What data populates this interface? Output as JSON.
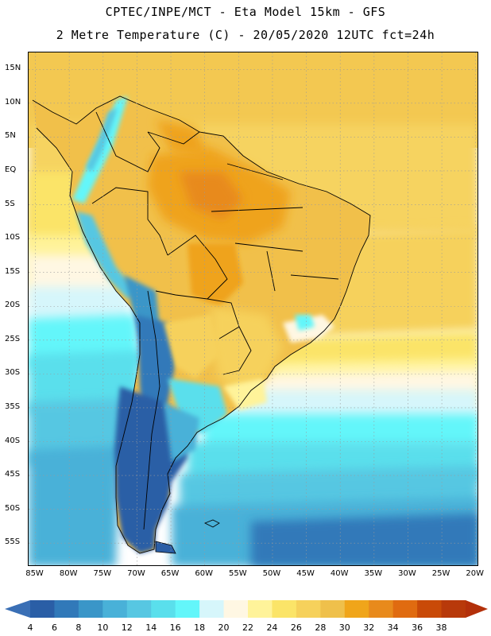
{
  "header": {
    "line1": "CPTEC/INPE/MCT -  Eta Model 15km - GFS",
    "line2": "2 Metre Temperature (C) - 20/05/2020 12UTC fct=24h"
  },
  "map": {
    "lat_labels": [
      "15N",
      "10N",
      "5N",
      "EQ",
      "5S",
      "10S",
      "15S",
      "20S",
      "25S",
      "30S",
      "35S",
      "40S",
      "45S",
      "50S",
      "55S"
    ],
    "lat_values": [
      15,
      10,
      5,
      0,
      -5,
      -10,
      -15,
      -20,
      -25,
      -30,
      -35,
      -40,
      -45,
      -50,
      -55
    ],
    "lon_labels": [
      "85W",
      "80W",
      "75W",
      "70W",
      "65W",
      "60W",
      "55W",
      "50W",
      "45W",
      "40W",
      "35W",
      "30W",
      "25W",
      "20W"
    ],
    "lon_values": [
      -85,
      -80,
      -75,
      -70,
      -65,
      -60,
      -55,
      -50,
      -45,
      -40,
      -35,
      -30,
      -25,
      -20
    ],
    "extent": {
      "lon_min": -86,
      "lon_max": -19.5,
      "lat_min": -58.5,
      "lat_max": 17.5
    },
    "gridlines": "dotted"
  },
  "colorbar": {
    "labels": [
      "4",
      "6",
      "8",
      "10",
      "12",
      "14",
      "16",
      "18",
      "20",
      "22",
      "24",
      "26",
      "28",
      "30",
      "32",
      "34",
      "36",
      "38"
    ],
    "colors": [
      "#2a5ea6",
      "#3179b9",
      "#3a96c8",
      "#49b1d8",
      "#57c7e2",
      "#5adfec",
      "#63f6fa",
      "#d6f6fb",
      "#fff7e3",
      "#fff39a",
      "#fbe468",
      "#f6d15b",
      "#efc04b",
      "#f0a51a",
      "#e88a1c",
      "#e06b10",
      "#c94a08",
      "#b8390a"
    ],
    "low_color": "#3a6fb5",
    "high_color": "#b3300a"
  }
}
